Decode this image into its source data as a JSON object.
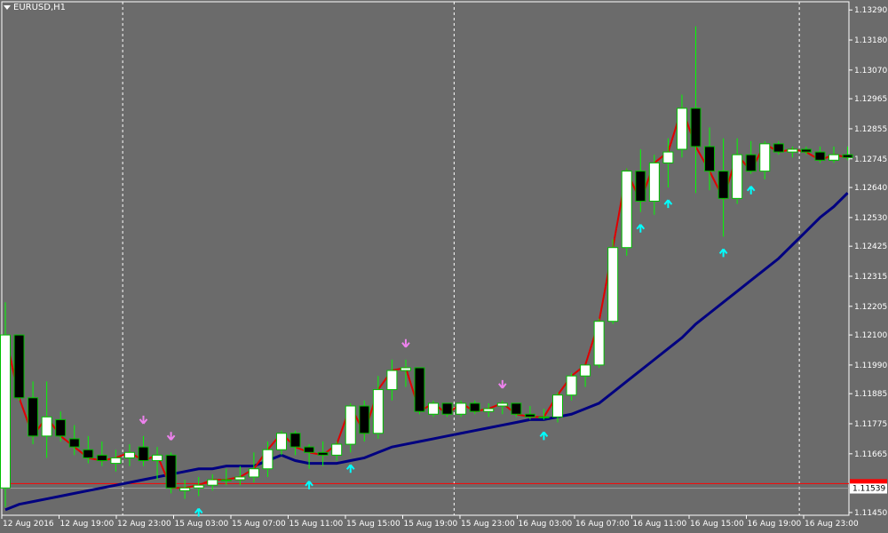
{
  "window": {
    "symbol_label": "EURUSD,H1"
  },
  "colors": {
    "background": "#6b6b6b",
    "axis_text": "#ffffff",
    "bull_body": "#ffffff",
    "bear_body": "#000000",
    "candle_outline": "#00c000",
    "wick": "#00ff00",
    "trend_line": "#e00000",
    "moving_average": "#000080",
    "arrow_up": "#00ffff",
    "arrow_down": "#ee82ee",
    "price_line": "#ff0000",
    "bid_line": "#9c9c9c",
    "separator": "#ffffff"
  },
  "chart_data": {
    "type": "candlestick",
    "symbol": "EURUSD",
    "timeframe": "H1",
    "y_ticks": [
      "1.13290",
      "1.13180",
      "1.13070",
      "1.12965",
      "1.12855",
      "1.12745",
      "1.12640",
      "1.12530",
      "1.12425",
      "1.12315",
      "1.12205",
      "1.12100",
      "1.11990",
      "1.11885",
      "1.11775",
      "1.11665",
      "1.11450"
    ],
    "x_ticks": [
      "12 Aug 2016",
      "12 Aug 19:00",
      "12 Aug 23:00",
      "15 Aug 03:00",
      "15 Aug 07:00",
      "15 Aug 11:00",
      "15 Aug 15:00",
      "15 Aug 19:00",
      "15 Aug 23:00",
      "16 Aug 03:00",
      "16 Aug 07:00",
      "16 Aug 11:00",
      "16 Aug 15:00",
      "16 Aug 19:00",
      "16 Aug 23:00"
    ],
    "ylim": [
      1.1144,
      1.1332
    ],
    "current_price": "1.11539",
    "current_price_value": 1.11539,
    "price_line_value": 1.11556,
    "candles": [
      {
        "o": 1.1154,
        "h": 1.1222,
        "l": 1.1147,
        "c": 1.121
      },
      {
        "o": 1.121,
        "h": 1.121,
        "l": 1.1186,
        "c": 1.1187
      },
      {
        "o": 1.1187,
        "h": 1.1193,
        "l": 1.117,
        "c": 1.1173
      },
      {
        "o": 1.1173,
        "h": 1.1193,
        "l": 1.1165,
        "c": 1.118
      },
      {
        "o": 1.1179,
        "h": 1.1182,
        "l": 1.1171,
        "c": 1.1173
      },
      {
        "o": 1.1172,
        "h": 1.1177,
        "l": 1.1166,
        "c": 1.1169
      },
      {
        "o": 1.1168,
        "h": 1.1173,
        "l": 1.1163,
        "c": 1.1165
      },
      {
        "o": 1.1166,
        "h": 1.1171,
        "l": 1.1162,
        "c": 1.1164
      },
      {
        "o": 1.1163,
        "h": 1.1168,
        "l": 1.116,
        "c": 1.1165
      },
      {
        "o": 1.1165,
        "h": 1.117,
        "l": 1.1162,
        "c": 1.1167
      },
      {
        "o": 1.1169,
        "h": 1.1173,
        "l": 1.1162,
        "c": 1.1164
      },
      {
        "o": 1.1164,
        "h": 1.1169,
        "l": 1.1157,
        "c": 1.1166
      },
      {
        "o": 1.1166,
        "h": 1.1167,
        "l": 1.1152,
        "c": 1.1154
      },
      {
        "o": 1.1153,
        "h": 1.1157,
        "l": 1.115,
        "c": 1.1154
      },
      {
        "o": 1.1154,
        "h": 1.1158,
        "l": 1.1151,
        "c": 1.1155
      },
      {
        "o": 1.1155,
        "h": 1.1159,
        "l": 1.1153,
        "c": 1.1157
      },
      {
        "o": 1.1157,
        "h": 1.1161,
        "l": 1.1155,
        "c": 1.1157
      },
      {
        "o": 1.1157,
        "h": 1.1162,
        "l": 1.1155,
        "c": 1.1158
      },
      {
        "o": 1.1158,
        "h": 1.1167,
        "l": 1.1156,
        "c": 1.1161
      },
      {
        "o": 1.1161,
        "h": 1.1171,
        "l": 1.1158,
        "c": 1.1168
      },
      {
        "o": 1.1168,
        "h": 1.1175,
        "l": 1.1166,
        "c": 1.1174
      },
      {
        "o": 1.1174,
        "h": 1.1175,
        "l": 1.1166,
        "c": 1.1169
      },
      {
        "o": 1.1169,
        "h": 1.117,
        "l": 1.1161,
        "c": 1.1167
      },
      {
        "o": 1.1167,
        "h": 1.1171,
        "l": 1.1162,
        "c": 1.1166
      },
      {
        "o": 1.1166,
        "h": 1.1171,
        "l": 1.1164,
        "c": 1.117
      },
      {
        "o": 1.117,
        "h": 1.1185,
        "l": 1.1167,
        "c": 1.1184
      },
      {
        "o": 1.1184,
        "h": 1.1186,
        "l": 1.1171,
        "c": 1.1174
      },
      {
        "o": 1.1174,
        "h": 1.1195,
        "l": 1.1172,
        "c": 1.119
      },
      {
        "o": 1.119,
        "h": 1.1201,
        "l": 1.1186,
        "c": 1.1197
      },
      {
        "o": 1.1197,
        "h": 1.1201,
        "l": 1.1191,
        "c": 1.1198
      },
      {
        "o": 1.1198,
        "h": 1.1198,
        "l": 1.1181,
        "c": 1.1182
      },
      {
        "o": 1.1181,
        "h": 1.1186,
        "l": 1.118,
        "c": 1.1185
      },
      {
        "o": 1.1185,
        "h": 1.1185,
        "l": 1.118,
        "c": 1.1181
      },
      {
        "o": 1.1181,
        "h": 1.1186,
        "l": 1.118,
        "c": 1.1185
      },
      {
        "o": 1.1185,
        "h": 1.1186,
        "l": 1.1181,
        "c": 1.1182
      },
      {
        "o": 1.1182,
        "h": 1.1185,
        "l": 1.118,
        "c": 1.1183
      },
      {
        "o": 1.1184,
        "h": 1.1186,
        "l": 1.1181,
        "c": 1.1185
      },
      {
        "o": 1.1185,
        "h": 1.1185,
        "l": 1.118,
        "c": 1.1181
      },
      {
        "o": 1.1181,
        "h": 1.1184,
        "l": 1.1179,
        "c": 1.118
      },
      {
        "o": 1.118,
        "h": 1.1183,
        "l": 1.1179,
        "c": 1.118
      },
      {
        "o": 1.118,
        "h": 1.1189,
        "l": 1.1178,
        "c": 1.1188
      },
      {
        "o": 1.1188,
        "h": 1.1196,
        "l": 1.1186,
        "c": 1.1195
      },
      {
        "o": 1.1195,
        "h": 1.1199,
        "l": 1.1191,
        "c": 1.1199
      },
      {
        "o": 1.1199,
        "h": 1.1216,
        "l": 1.1198,
        "c": 1.1215
      },
      {
        "o": 1.1215,
        "h": 1.1245,
        "l": 1.1214,
        "c": 1.1242
      },
      {
        "o": 1.1242,
        "h": 1.1271,
        "l": 1.1239,
        "c": 1.127
      },
      {
        "o": 1.127,
        "h": 1.1278,
        "l": 1.1255,
        "c": 1.1259
      },
      {
        "o": 1.1259,
        "h": 1.1276,
        "l": 1.1254,
        "c": 1.1273
      },
      {
        "o": 1.1273,
        "h": 1.1282,
        "l": 1.1264,
        "c": 1.1277
      },
      {
        "o": 1.1278,
        "h": 1.1298,
        "l": 1.1275,
        "c": 1.1293
      },
      {
        "o": 1.1293,
        "h": 1.1323,
        "l": 1.1262,
        "c": 1.1279
      },
      {
        "o": 1.1279,
        "h": 1.1286,
        "l": 1.1263,
        "c": 1.127
      },
      {
        "o": 1.127,
        "h": 1.1282,
        "l": 1.1246,
        "c": 1.126
      },
      {
        "o": 1.126,
        "h": 1.1282,
        "l": 1.1258,
        "c": 1.1276
      },
      {
        "o": 1.1276,
        "h": 1.1281,
        "l": 1.1269,
        "c": 1.127
      },
      {
        "o": 1.127,
        "h": 1.1281,
        "l": 1.1267,
        "c": 1.128
      },
      {
        "o": 1.128,
        "h": 1.1281,
        "l": 1.1276,
        "c": 1.1277
      },
      {
        "o": 1.1277,
        "h": 1.1279,
        "l": 1.1275,
        "c": 1.1278
      },
      {
        "o": 1.1278,
        "h": 1.1279,
        "l": 1.1276,
        "c": 1.1277
      },
      {
        "o": 1.1277,
        "h": 1.1279,
        "l": 1.1273,
        "c": 1.1274
      },
      {
        "o": 1.1274,
        "h": 1.1279,
        "l": 1.1273,
        "c": 1.1276
      },
      {
        "o": 1.1276,
        "h": 1.1279,
        "l": 1.1274,
        "c": 1.1275
      }
    ],
    "moving_average": [
      1.1146,
      1.1148,
      1.1149,
      1.115,
      1.1151,
      1.1152,
      1.1153,
      1.1154,
      1.1155,
      1.1156,
      1.1157,
      1.1158,
      1.1159,
      1.116,
      1.1161,
      1.1161,
      1.1162,
      1.1162,
      1.1162,
      1.1164,
      1.1166,
      1.1164,
      1.1163,
      1.1163,
      1.1163,
      1.1164,
      1.1165,
      1.1167,
      1.1169,
      1.117,
      1.1171,
      1.1172,
      1.1173,
      1.1174,
      1.1175,
      1.1176,
      1.1177,
      1.1178,
      1.1179,
      1.1179,
      1.118,
      1.1181,
      1.1183,
      1.1185,
      1.1189,
      1.1193,
      1.1197,
      1.1201,
      1.1205,
      1.1209,
      1.1214,
      1.1218,
      1.1222,
      1.1226,
      1.123,
      1.1234,
      1.1238,
      1.1243,
      1.1248,
      1.1253,
      1.1257,
      1.1262
    ],
    "arrows_up": [
      14,
      22,
      25,
      39,
      46,
      48,
      52,
      54
    ],
    "arrows_down": [
      10,
      12,
      29,
      36
    ],
    "period_separators": [
      9,
      33,
      58
    ]
  }
}
